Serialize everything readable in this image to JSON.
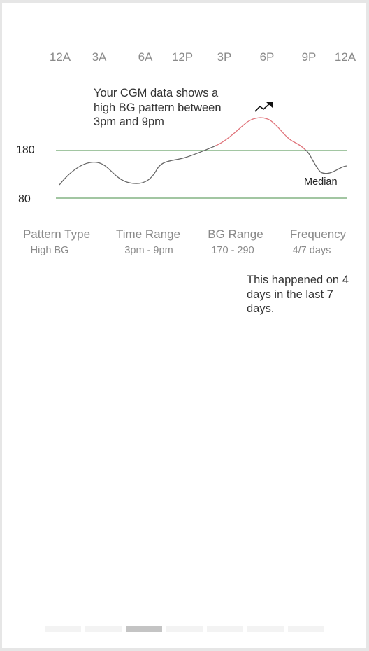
{
  "time_axis": [
    "12A",
    "3A",
    "6A",
    "12P",
    "3P",
    "6P",
    "9P",
    "12A"
  ],
  "callout": "Your CGM data shows a high BG pattern between 3pm and 9pm",
  "trend_icon": "trending-up-icon",
  "chart_data": {
    "type": "line",
    "threshold_high": "180",
    "threshold_low": "80",
    "series_label": "Median",
    "colors": {
      "normal": "#666666",
      "high": "#e0737a",
      "thresholds": "#6aa56a"
    }
  },
  "summary": {
    "pattern_type": {
      "label": "Pattern Type",
      "value": "High BG"
    },
    "time_range": {
      "label": "Time Range",
      "value": "3pm - 9pm"
    },
    "bg_range": {
      "label": "BG Range",
      "value": "170 - 290"
    },
    "frequency": {
      "label": "Frequency",
      "value": "4/7 days"
    }
  },
  "note": "This happened on 4 days in the last 7 days.",
  "pager": {
    "count": 7,
    "active_index": 2
  }
}
